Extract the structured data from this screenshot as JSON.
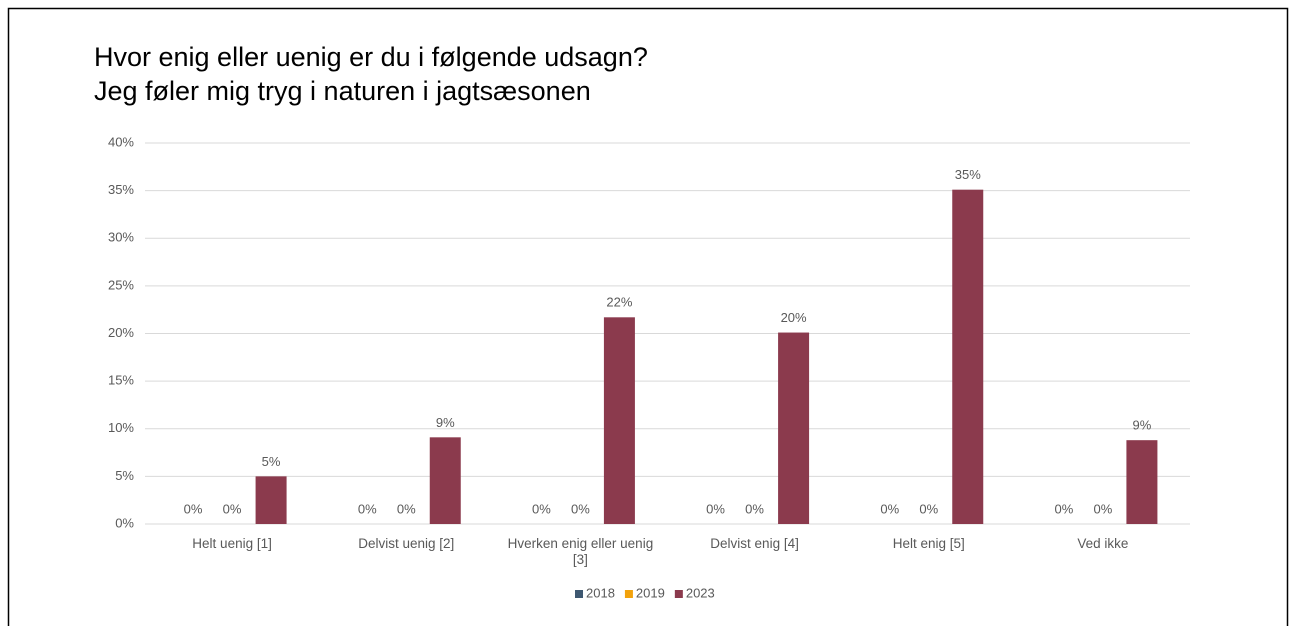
{
  "chart_data": {
    "type": "bar",
    "title": [
      "Hvor enig eller uenig er du i følgende udsagn?",
      "Jeg føler mig tryg i naturen i jagtsæsonen"
    ],
    "categories": [
      "Helt uenig [1]",
      "Delvist uenig [2]",
      "Hverken enig eller uenig [3]",
      "Delvist enig [4]",
      "Helt enig [5]",
      "Ved ikke"
    ],
    "series": [
      {
        "name": "2018",
        "color": "#3e5871",
        "values": [
          0,
          0,
          0,
          0,
          0,
          0
        ],
        "value_labels": [
          "0%",
          "0%",
          "0%",
          "0%",
          "0%",
          "0%"
        ]
      },
      {
        "name": "2019",
        "color": "#f2a20c",
        "values": [
          0,
          0,
          0,
          0,
          0,
          0
        ],
        "value_labels": [
          "0%",
          "0%",
          "0%",
          "0%",
          "0%",
          "0%"
        ]
      },
      {
        "name": "2023",
        "color": "#8b3a4d",
        "values": [
          5,
          9.1,
          21.7,
          20.1,
          35.1,
          8.8
        ],
        "value_labels": [
          "5%",
          "9%",
          "22%",
          "20%",
          "35%",
          "9%"
        ]
      }
    ],
    "ylim": [
      0,
      40
    ],
    "yticks": [
      {
        "value": 0,
        "label": "0%"
      },
      {
        "value": 5,
        "label": "5%"
      },
      {
        "value": 10,
        "label": "10%"
      },
      {
        "value": 15,
        "label": "15%"
      },
      {
        "value": 20,
        "label": "20%"
      },
      {
        "value": 25,
        "label": "25%"
      },
      {
        "value": 30,
        "label": "30%"
      },
      {
        "value": 35,
        "label": "35%"
      },
      {
        "value": 40,
        "label": "40%"
      }
    ],
    "grid": true,
    "legend": "bottom"
  }
}
